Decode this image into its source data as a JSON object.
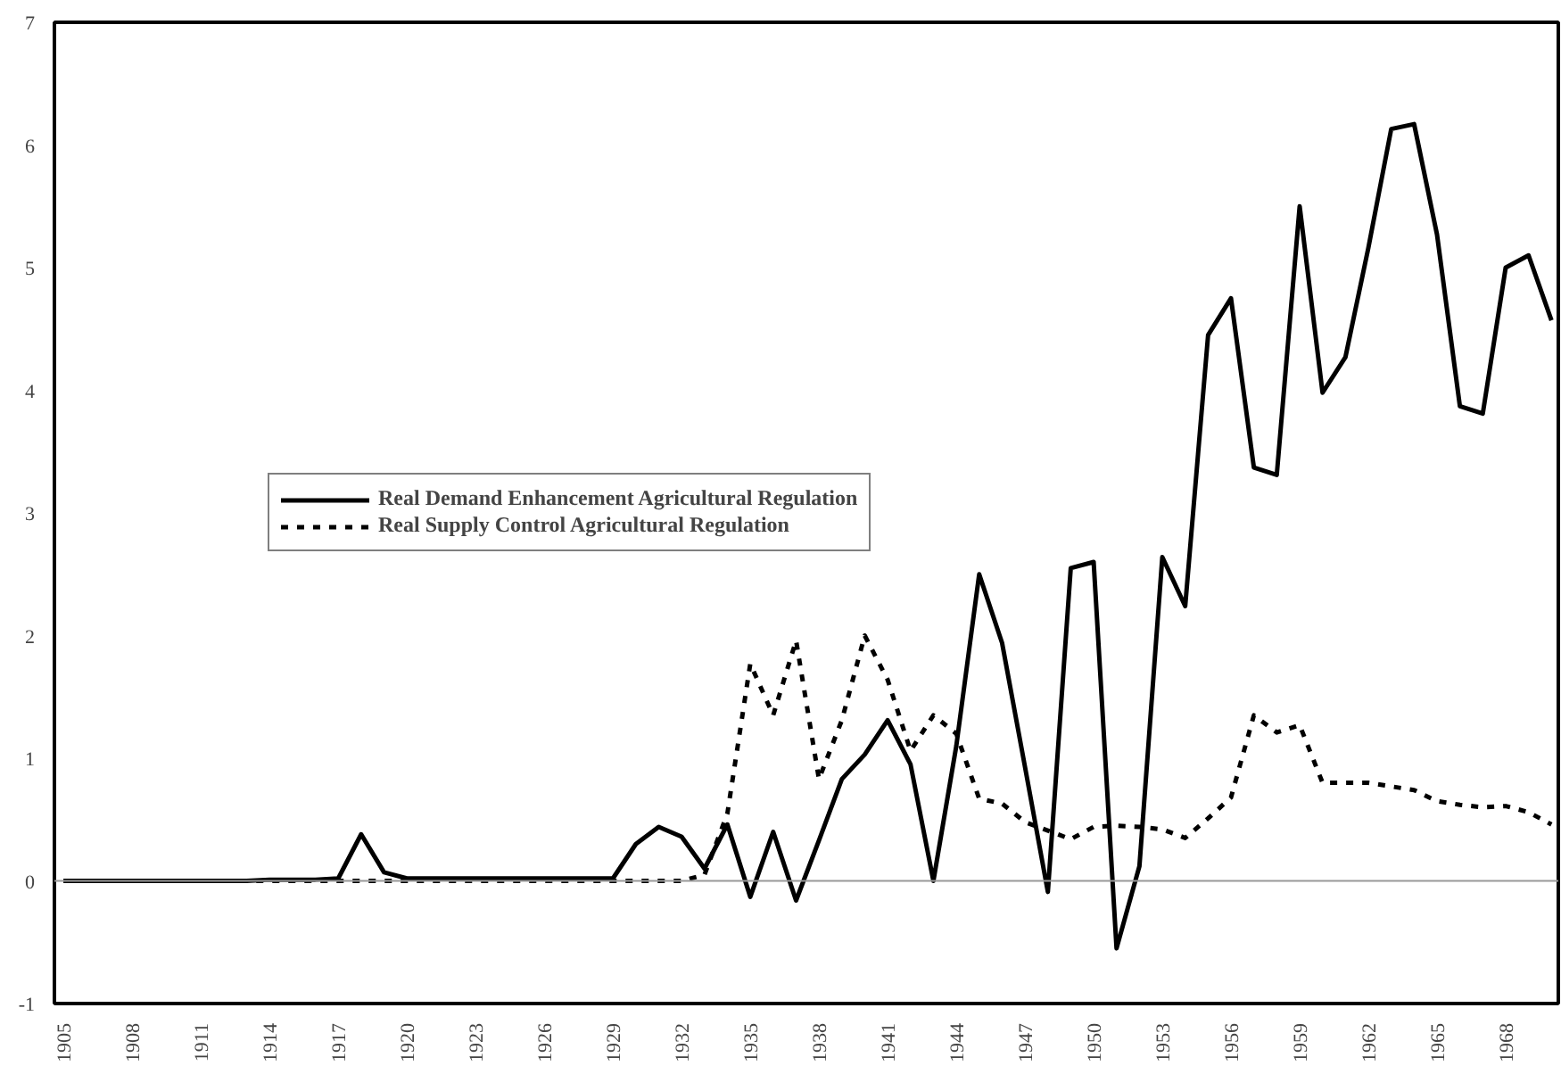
{
  "chart_data": {
    "type": "line",
    "x": [
      1905,
      1906,
      1907,
      1908,
      1909,
      1910,
      1911,
      1912,
      1913,
      1914,
      1915,
      1916,
      1917,
      1918,
      1919,
      1920,
      1921,
      1922,
      1923,
      1924,
      1925,
      1926,
      1927,
      1928,
      1929,
      1930,
      1931,
      1932,
      1933,
      1934,
      1935,
      1936,
      1937,
      1938,
      1939,
      1940,
      1941,
      1942,
      1943,
      1944,
      1945,
      1946,
      1947,
      1948,
      1949,
      1950,
      1951,
      1952,
      1953,
      1954,
      1955,
      1956,
      1957,
      1958,
      1959,
      1960,
      1961,
      1962,
      1963,
      1964,
      1965,
      1966,
      1967,
      1968,
      1969,
      1970
    ],
    "series": [
      {
        "name": "Real Demand Enhancement Agricultural Regulation",
        "color": "#000000",
        "line_style": "solid",
        "values": [
          0,
          0,
          0,
          0,
          0,
          0,
          0,
          0,
          0,
          0.01,
          0.01,
          0.01,
          0.02,
          0.38,
          0.07,
          0.02,
          0.02,
          0.02,
          0.02,
          0.02,
          0.02,
          0.02,
          0.02,
          0.02,
          0.02,
          0.3,
          0.44,
          0.36,
          0.1,
          0.46,
          -0.13,
          0.4,
          -0.16,
          0.33,
          0.83,
          1.03,
          1.31,
          0.95,
          0,
          1.1,
          2.5,
          1.94,
          0.93,
          -0.09,
          2.55,
          2.6,
          -0.55,
          0.12,
          2.64,
          2.24,
          4.45,
          4.75,
          3.37,
          3.31,
          5.5,
          3.98,
          4.27,
          5.16,
          6.13,
          6.17,
          5.27,
          3.87,
          3.81,
          5.0,
          5.1,
          4.57
        ]
      },
      {
        "name": "Real Supply Control Agricultural Regulation",
        "color": "#000000",
        "line_style": "dashed",
        "values": [
          0,
          0,
          0,
          0,
          0,
          0,
          0,
          0,
          0,
          0,
          0,
          0,
          0,
          0,
          0,
          0,
          0,
          0,
          0,
          0,
          0,
          0,
          0,
          0,
          0,
          0,
          0,
          0,
          0.05,
          0.55,
          1.77,
          1.35,
          1.96,
          0.83,
          1.31,
          2.0,
          1.64,
          1.06,
          1.35,
          1.2,
          0.67,
          0.63,
          0.48,
          0.41,
          0.34,
          0.44,
          0.45,
          0.44,
          0.42,
          0.35,
          0.51,
          0.68,
          1.35,
          1.21,
          1.27,
          0.8,
          0.8,
          0.8,
          0.77,
          0.74,
          0.65,
          0.62,
          0.6,
          0.61,
          0.56,
          0.46
        ]
      }
    ],
    "xlim": [
      1904.6,
      1970.3
    ],
    "xticks": [
      1905,
      1908,
      1911,
      1914,
      1917,
      1920,
      1923,
      1926,
      1929,
      1932,
      1935,
      1938,
      1941,
      1944,
      1947,
      1950,
      1953,
      1956,
      1959,
      1962,
      1965,
      1968
    ],
    "ylim": [
      -1,
      7
    ],
    "yticks": [
      -1,
      0,
      1,
      2,
      3,
      4,
      5,
      6,
      7
    ],
    "ref_lines": [
      {
        "axis": "y",
        "value": 0,
        "color": "#999999"
      }
    ],
    "grid": false,
    "legend": "left"
  }
}
